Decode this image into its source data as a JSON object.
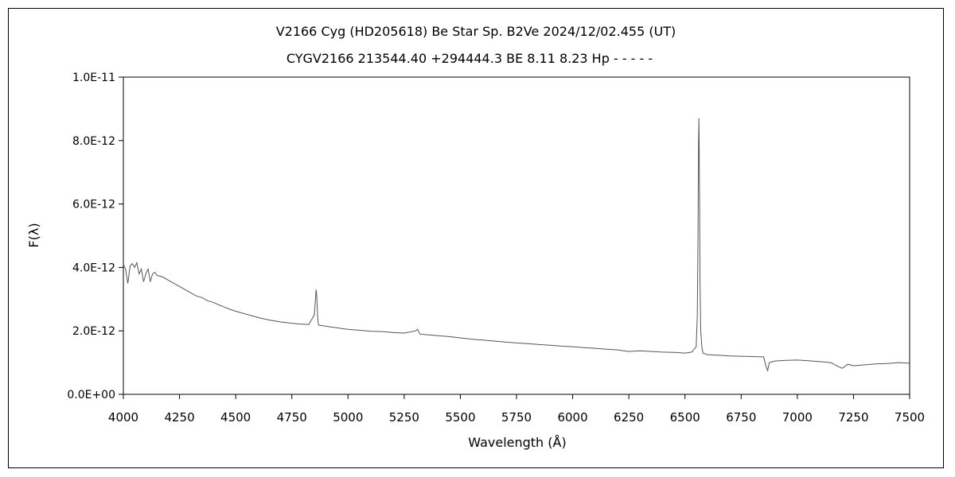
{
  "chart_data": {
    "type": "line",
    "title": "V2166 Cyg (HD205618)    Be Star    Sp. B2Ve    2024/12/02.455 (UT)",
    "subtitle": "CYGV2166 213544.40 +294444.3 BE 8.11 8.23 Hp - - - - -",
    "xlabel": "Wavelength (Å)",
    "ylabel": "F(λ)",
    "xlim": [
      4000,
      7500
    ],
    "ylim": [
      0,
      1e-11
    ],
    "x_ticks": [
      "4000",
      "4250",
      "4500",
      "4750",
      "5000",
      "5250",
      "5500",
      "5750",
      "6000",
      "6250",
      "6500",
      "6750",
      "7000",
      "7250",
      "7500"
    ],
    "y_ticks": [
      "0.0E+00",
      "2.0E-12",
      "4.0E-12",
      "6.0E-12",
      "8.0E-12",
      "1.0E-11"
    ],
    "grid": false,
    "legend": "none",
    "line_color": "#555555",
    "series": [
      {
        "x": [
          4000,
          4010,
          4020,
          4030,
          4040,
          4050,
          4060,
          4070,
          4080,
          4090,
          4100,
          4110,
          4120,
          4130,
          4140,
          4150,
          4175,
          4200,
          4225,
          4250,
          4275,
          4300,
          4325,
          4350,
          4375,
          4400,
          4425,
          4450,
          4475,
          4500,
          4525,
          4550,
          4575,
          4600,
          4625,
          4650,
          4675,
          4700,
          4725,
          4750,
          4775,
          4800,
          4825,
          4850,
          4855,
          4858,
          4861,
          4864,
          4867,
          4870,
          4880,
          4900,
          4925,
          4950,
          4975,
          5000,
          5050,
          5100,
          5150,
          5200,
          5250,
          5300,
          5310,
          5320,
          5350,
          5400,
          5450,
          5500,
          5550,
          5600,
          5650,
          5700,
          5750,
          5800,
          5850,
          5900,
          5950,
          6000,
          6050,
          6100,
          6150,
          6200,
          6250,
          6300,
          6350,
          6400,
          6450,
          6500,
          6530,
          6550,
          6555,
          6558,
          6560,
          6562,
          6563,
          6565,
          6567,
          6570,
          6575,
          6580,
          6600,
          6650,
          6700,
          6750,
          6800,
          6850,
          6860,
          6868,
          6875,
          6900,
          6950,
          7000,
          7050,
          7100,
          7150,
          7175,
          7200,
          7225,
          7250,
          7300,
          7350,
          7400,
          7450,
          7500
        ],
        "values": [
          4.1e-12,
          3.95e-12,
          3.5e-12,
          4.05e-12,
          4.12e-12,
          4e-12,
          4.15e-12,
          3.8e-12,
          3.95e-12,
          3.55e-12,
          3.8e-12,
          3.95e-12,
          3.55e-12,
          3.8e-12,
          3.85e-12,
          3.75e-12,
          3.7e-12,
          3.6e-12,
          3.5e-12,
          3.4e-12,
          3.3e-12,
          3.2e-12,
          3.1e-12,
          3.05e-12,
          2.95e-12,
          2.9e-12,
          2.82e-12,
          2.75e-12,
          2.68e-12,
          2.62e-12,
          2.57e-12,
          2.52e-12,
          2.47e-12,
          2.42e-12,
          2.38e-12,
          2.34e-12,
          2.31e-12,
          2.28e-12,
          2.26e-12,
          2.24e-12,
          2.22e-12,
          2.21e-12,
          2.2e-12,
          2.5e-12,
          3e-12,
          3.3e-12,
          3.1e-12,
          2.6e-12,
          2.25e-12,
          2.18e-12,
          2.17e-12,
          2.15e-12,
          2.12e-12,
          2.1e-12,
          2.07e-12,
          2.05e-12,
          2.02e-12,
          1.99e-12,
          1.98e-12,
          1.95e-12,
          1.93e-12,
          2e-12,
          2.05e-12,
          1.9e-12,
          1.88e-12,
          1.85e-12,
          1.82e-12,
          1.78e-12,
          1.74e-12,
          1.71e-12,
          1.68e-12,
          1.65e-12,
          1.62e-12,
          1.6e-12,
          1.57e-12,
          1.55e-12,
          1.52e-12,
          1.5e-12,
          1.47e-12,
          1.45e-12,
          1.42e-12,
          1.4e-12,
          1.35e-12,
          1.37e-12,
          1.35e-12,
          1.33e-12,
          1.32e-12,
          1.3e-12,
          1.33e-12,
          1.5e-12,
          2.5e-12,
          5e-12,
          7.8e-12,
          8.7e-12,
          8e-12,
          6e-12,
          3.5e-12,
          2e-12,
          1.5e-12,
          1.3e-12,
          1.25e-12,
          1.23e-12,
          1.21e-12,
          1.2e-12,
          1.19e-12,
          1.18e-12,
          9e-13,
          7.5e-13,
          1e-12,
          1.05e-12,
          1.07e-12,
          1.08e-12,
          1.06e-12,
          1.03e-12,
          1e-12,
          9e-13,
          8.2e-13,
          9.5e-13,
          9e-13,
          9.3e-13,
          9.6e-13,
          9.7e-13,
          1e-12,
          9.8e-13
        ]
      }
    ]
  }
}
